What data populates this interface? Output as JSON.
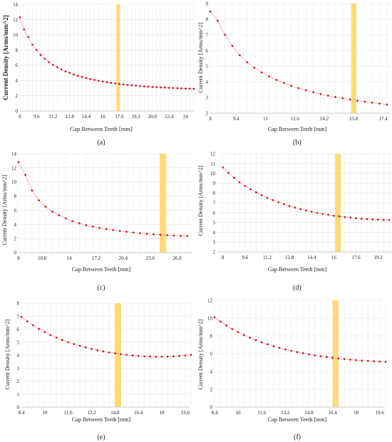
{
  "figure": {
    "marker_color": "#c0101b",
    "line_color": "#f0a0a6",
    "highlight_color": "#ffd766",
    "grid_color": "#e3e3e3"
  },
  "chart_data": [
    {
      "type": "line",
      "panel_label": "(a)",
      "xlabel": "Gap Between Teeth [mm]",
      "ylabel": "Current Density [Arms/mm^2]",
      "xlim": [
        8,
        24.8
      ],
      "ylim": [
        0,
        14
      ],
      "xticks": [
        8,
        9.6,
        11.2,
        12.8,
        14.4,
        16,
        17.6,
        19.2,
        20.8,
        22.4,
        24
      ],
      "yticks": [
        0,
        2,
        4,
        6,
        8,
        10,
        12,
        14
      ],
      "highlight_x": 17.5,
      "series": [
        {
          "x": [
            8,
            8.4,
            8.8,
            9.2,
            9.6,
            10,
            10.4,
            10.8,
            11.2,
            11.6,
            12,
            12.4,
            12.8,
            13.2,
            13.6,
            14,
            14.4,
            14.8,
            15.2,
            15.6,
            16,
            16.4,
            16.8,
            17.2,
            17.6,
            18,
            18.4,
            18.8,
            19.2,
            19.6,
            20,
            20.4,
            20.8,
            21.2,
            21.6,
            22,
            22.4,
            22.8,
            23.2,
            23.6,
            24,
            24.4,
            24.8
          ],
          "y": [
            12.3,
            10.7,
            9.7,
            8.7,
            8.0,
            7.35,
            6.85,
            6.4,
            6.05,
            5.75,
            5.45,
            5.2,
            5.0,
            4.8,
            4.62,
            4.47,
            4.33,
            4.2,
            4.08,
            3.97,
            3.87,
            3.78,
            3.7,
            3.62,
            3.55,
            3.49,
            3.43,
            3.38,
            3.33,
            3.28,
            3.24,
            3.2,
            3.16,
            3.13,
            3.1,
            3.07,
            3.04,
            3.01,
            2.99,
            2.97,
            2.95,
            2.93,
            2.91
          ]
        }
      ]
    },
    {
      "type": "line",
      "panel_label": "(b)",
      "xlabel": "Gap Between Teeth [mm]",
      "ylabel": "Current Density [Arms/mm^2]",
      "xlim": [
        8,
        17.8
      ],
      "ylim": [
        2,
        9
      ],
      "xticks": [
        8,
        9.4,
        11,
        12.6,
        14.2,
        15.8,
        17.4
      ],
      "yticks": [
        2,
        3,
        4,
        5,
        6,
        7,
        8,
        9
      ],
      "highlight_x": 15.8,
      "series": [
        {
          "x": [
            8,
            8.4,
            8.8,
            9.2,
            9.6,
            10,
            10.4,
            10.8,
            11.2,
            11.6,
            12,
            12.4,
            12.8,
            13.2,
            13.6,
            14,
            14.4,
            14.8,
            15.2,
            15.6,
            16,
            16.4,
            16.8,
            17.2,
            17.6
          ],
          "y": [
            8.5,
            7.9,
            7.0,
            6.3,
            5.7,
            5.25,
            4.9,
            4.6,
            4.35,
            4.12,
            3.93,
            3.75,
            3.6,
            3.46,
            3.34,
            3.22,
            3.12,
            3.03,
            2.95,
            2.87,
            2.8,
            2.73,
            2.67,
            2.61,
            2.55
          ]
        }
      ]
    },
    {
      "type": "line",
      "panel_label": "(c)",
      "xlabel": "Gap Between Teeth [mm]",
      "ylabel": "Current Density [Arms/mm^2]",
      "xlim": [
        8,
        28.6
      ],
      "ylim": [
        0,
        14
      ],
      "xticks": [
        8,
        10.8,
        14,
        17.2,
        20.4,
        23.6,
        26.8
      ],
      "yticks": [
        0,
        2,
        4,
        6,
        8,
        10,
        12,
        14
      ],
      "highlight_x": 25.1,
      "series": [
        {
          "x": [
            8,
            8.8,
            9.6,
            10.4,
            11.2,
            12,
            12.8,
            13.6,
            14.4,
            15.2,
            16,
            16.8,
            17.6,
            18.4,
            19.2,
            20,
            20.8,
            21.6,
            22.4,
            23.2,
            24,
            24.8,
            25.6,
            26.4,
            27.2,
            28
          ],
          "y": [
            12.8,
            11.0,
            8.8,
            7.4,
            6.5,
            5.8,
            5.3,
            4.85,
            4.45,
            4.15,
            3.9,
            3.7,
            3.5,
            3.35,
            3.2,
            3.07,
            2.95,
            2.85,
            2.76,
            2.67,
            2.6,
            2.53,
            2.47,
            2.42,
            2.38,
            2.35
          ]
        }
      ]
    },
    {
      "type": "line",
      "panel_label": "(d)",
      "xlabel": "Gap Between Teeth [mm]",
      "ylabel": "Current Density [Arms/mm^2]",
      "xlim": [
        7.6,
        20.2
      ],
      "ylim": [
        2,
        12
      ],
      "xticks": [
        8,
        9.6,
        11.2,
        12.8,
        14.4,
        16,
        17.6,
        19.2
      ],
      "yticks": [
        2,
        3,
        4,
        5,
        6,
        7,
        8,
        9,
        10,
        11,
        12
      ],
      "highlight_x": 16.3,
      "series": [
        {
          "x": [
            8,
            8.4,
            8.8,
            9.2,
            9.6,
            10,
            10.4,
            10.8,
            11.2,
            11.6,
            12,
            12.4,
            12.8,
            13.2,
            13.6,
            14,
            14.4,
            14.8,
            15.2,
            15.6,
            16,
            16.4,
            16.8,
            17.2,
            17.6,
            18,
            18.4,
            18.8,
            19.2,
            19.6,
            20
          ],
          "y": [
            10.6,
            10.05,
            9.55,
            9.1,
            8.72,
            8.38,
            8.06,
            7.78,
            7.52,
            7.28,
            7.06,
            6.86,
            6.68,
            6.51,
            6.36,
            6.22,
            6.1,
            5.98,
            5.87,
            5.78,
            5.69,
            5.62,
            5.55,
            5.49,
            5.44,
            5.39,
            5.35,
            5.32,
            5.29,
            5.27,
            5.25
          ]
        }
      ]
    },
    {
      "type": "line",
      "panel_label": "(e)",
      "xlabel": "Gap Between Teeth [mm]",
      "ylabel": "Current Density [Arms/mm^2]",
      "xlim": [
        8.4,
        19.9
      ],
      "ylim": [
        0,
        8
      ],
      "xticks": [
        8.4,
        10,
        11.6,
        13.2,
        14.8,
        16.4,
        18,
        19.6
      ],
      "yticks": [
        0,
        1,
        2,
        3,
        4,
        5,
        6,
        7,
        8
      ],
      "highlight_x": 15.0,
      "series": [
        {
          "x": [
            8.4,
            8.8,
            9.2,
            9.6,
            10,
            10.4,
            10.8,
            11.2,
            11.6,
            12,
            12.4,
            12.8,
            13.2,
            13.6,
            14,
            14.4,
            14.8,
            15.2,
            15.6,
            16,
            16.4,
            16.8,
            17.2,
            17.6,
            18,
            18.4,
            18.8,
            19.2,
            19.6,
            20
          ],
          "y": [
            6.95,
            6.6,
            6.3,
            6.02,
            5.78,
            5.55,
            5.35,
            5.17,
            5.0,
            4.85,
            4.72,
            4.6,
            4.48,
            4.38,
            4.29,
            4.21,
            4.14,
            4.08,
            4.03,
            3.98,
            3.94,
            3.91,
            3.89,
            3.88,
            3.88,
            3.89,
            3.91,
            3.94,
            3.98,
            4.03
          ]
        }
      ]
    },
    {
      "type": "line",
      "panel_label": "(f)",
      "xlabel": "Gap Between Teeth [mm]",
      "ylabel": "Current Density [Arms/mm^2]",
      "xlim": [
        8.4,
        19.9
      ],
      "ylim": [
        0,
        12
      ],
      "xticks": [
        8.4,
        10,
        11.6,
        13.2,
        14.8,
        16.4,
        18,
        19.6
      ],
      "yticks": [
        0,
        2,
        4,
        6,
        8,
        10,
        12
      ],
      "highlight_x": 16.6,
      "series": [
        {
          "x": [
            8.4,
            8.8,
            9.2,
            9.6,
            10,
            10.4,
            10.8,
            11.2,
            11.6,
            12,
            12.4,
            12.8,
            13.2,
            13.6,
            14,
            14.4,
            14.8,
            15.2,
            15.6,
            16,
            16.4,
            16.8,
            17.2,
            17.6,
            18,
            18.4,
            18.8,
            19.2,
            19.6,
            20
          ],
          "y": [
            10.1,
            9.62,
            9.18,
            8.78,
            8.42,
            8.1,
            7.8,
            7.53,
            7.28,
            7.06,
            6.85,
            6.66,
            6.49,
            6.33,
            6.19,
            6.06,
            5.93,
            5.82,
            5.72,
            5.63,
            5.54,
            5.47,
            5.4,
            5.34,
            5.28,
            5.23,
            5.19,
            5.15,
            5.12,
            5.1
          ]
        }
      ]
    }
  ]
}
